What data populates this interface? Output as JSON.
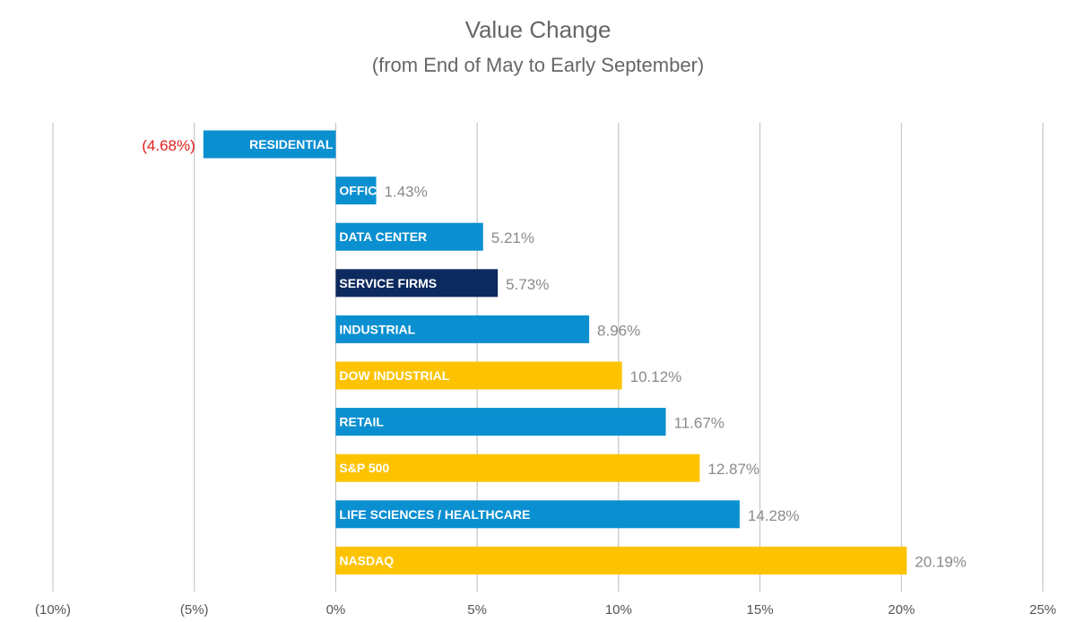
{
  "chart_data": {
    "type": "bar",
    "orientation": "horizontal",
    "title": "Value Change",
    "subtitle": "(from End of May to Early September)",
    "xlim": [
      -10,
      25
    ],
    "x_ticks": [
      -10,
      -5,
      0,
      5,
      10,
      15,
      20,
      25
    ],
    "x_tick_labels": [
      "(10%)",
      "(5%)",
      "0%",
      "5%",
      "10%",
      "15%",
      "20%",
      "25%"
    ],
    "grid": true,
    "categories": [
      "RESIDENTIAL",
      "OFFICE",
      "DATA CENTER",
      "SERVICE FIRMS",
      "INDUSTRIAL",
      "DOW INDUSTRIAL",
      "RETAIL",
      "S&P 500",
      "LIFE SCIENCES / HEALTHCARE",
      "NASDAQ"
    ],
    "values": [
      -4.68,
      1.43,
      5.21,
      5.73,
      8.96,
      10.12,
      11.67,
      12.87,
      14.28,
      20.19
    ],
    "value_labels": [
      "(4.68%)",
      "1.43%",
      "5.21%",
      "5.73%",
      "8.96%",
      "10.12%",
      "11.67%",
      "12.87%",
      "14.28%",
      "20.19%"
    ],
    "bar_colors": [
      "#0a8fd0",
      "#0a8fd0",
      "#0a8fd0",
      "#0d2a5e",
      "#0a8fd0",
      "#fdc300",
      "#0a8fd0",
      "#fdc300",
      "#0a8fd0",
      "#fdc300"
    ],
    "negative_label_color": "#e0201b",
    "positive_label_color": "#8a8a8a",
    "grid_color": "#bbbbbb"
  }
}
